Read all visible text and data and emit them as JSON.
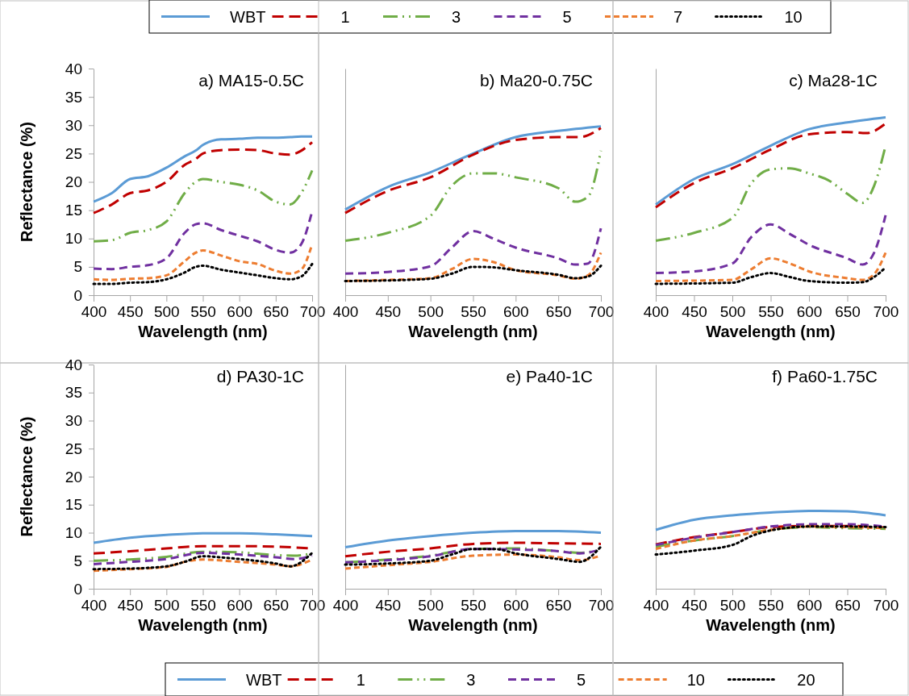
{
  "chart_data": [
    {
      "type": "line",
      "title": "a) MA15-0.5C",
      "xlabel": "Wavelength (nm)",
      "ylabel": "Reflectance (%)",
      "xlim": [
        400,
        700
      ],
      "xticks": [
        400,
        450,
        500,
        550,
        600,
        650,
        700
      ],
      "ylim": [
        0,
        40
      ],
      "yticks": [
        0,
        5,
        10,
        15,
        20,
        25,
        30,
        35,
        40
      ],
      "legend": "top",
      "grid": false,
      "marker": "none",
      "series": [
        {
          "name": "WBT",
          "color": "#5b9bd5",
          "line_style": "solid",
          "x": [
            400,
            425,
            450,
            475,
            500,
            525,
            540,
            550,
            575,
            600,
            625,
            650,
            670,
            685,
            700
          ],
          "values": [
            16.5,
            18,
            20.5,
            21,
            22.5,
            24.5,
            25.5,
            26.5,
            27.5,
            27.6,
            27.8,
            27.8,
            27.9,
            28,
            28
          ]
        },
        {
          "name": "1",
          "color": "#c00000",
          "line_style": "dashed",
          "x": [
            400,
            425,
            450,
            475,
            500,
            525,
            540,
            550,
            575,
            600,
            625,
            650,
            670,
            685,
            700
          ],
          "values": [
            14.5,
            16,
            18,
            18.5,
            20,
            23,
            24,
            25,
            25.6,
            25.7,
            25.6,
            25,
            24.8,
            25.5,
            27
          ]
        },
        {
          "name": "3",
          "color": "#70ad47",
          "line_style": "dashed",
          "x": [
            400,
            425,
            450,
            475,
            500,
            525,
            540,
            550,
            575,
            600,
            625,
            650,
            670,
            685,
            700
          ],
          "values": [
            9.5,
            9.7,
            11,
            11.5,
            13,
            18,
            20,
            20.5,
            20,
            19.5,
            18.5,
            16.5,
            16,
            18,
            22
          ]
        },
        {
          "name": "5",
          "color": "#7030a0",
          "line_style": "dashed",
          "x": [
            400,
            425,
            450,
            475,
            500,
            525,
            540,
            550,
            575,
            600,
            625,
            650,
            670,
            685,
            700
          ],
          "values": [
            4.7,
            4.6,
            5,
            5.3,
            6.5,
            11,
            12.5,
            12.7,
            11.5,
            10.5,
            9.5,
            8,
            7.5,
            9,
            14.8
          ]
        },
        {
          "name": "7",
          "color": "#ed7d31",
          "line_style": "dashed",
          "x": [
            400,
            425,
            450,
            475,
            500,
            525,
            540,
            550,
            575,
            600,
            625,
            650,
            670,
            685,
            700
          ],
          "values": [
            2.8,
            2.7,
            2.9,
            3,
            3.5,
            6,
            7.5,
            7.9,
            7,
            6,
            5.5,
            4.3,
            3.8,
            4.5,
            9
          ]
        },
        {
          "name": "10",
          "color": "#000000",
          "line_style": "dotted",
          "x": [
            400,
            425,
            450,
            475,
            500,
            525,
            540,
            550,
            575,
            600,
            625,
            650,
            670,
            685,
            700
          ],
          "values": [
            2,
            2,
            2.2,
            2.3,
            2.8,
            4,
            5,
            5.2,
            4.5,
            4,
            3.5,
            3,
            2.8,
            3.3,
            5.5
          ]
        }
      ]
    },
    {
      "type": "line",
      "title": "b) Ma20-0.75C",
      "xlabel": "Wavelength (nm)",
      "xlim": [
        400,
        700
      ],
      "xticks": [
        400,
        450,
        500,
        550,
        600,
        650,
        700
      ],
      "ylim": [
        0,
        40
      ],
      "yticks": [
        0,
        5,
        10,
        15,
        20,
        25,
        30,
        35,
        40
      ],
      "tick_labels": "x",
      "grid": false,
      "marker": "none",
      "series": [
        {
          "color": "#5b9bd5",
          "line_style": "solid",
          "x": [
            400,
            450,
            500,
            550,
            600,
            650,
            700
          ],
          "values": [
            15.1,
            19.1,
            21.7,
            25,
            27.9,
            29,
            29.8
          ]
        },
        {
          "color": "#c00000",
          "line_style": "dashed",
          "x": [
            400,
            450,
            500,
            550,
            600,
            650,
            675,
            700
          ],
          "values": [
            14.5,
            18.4,
            20.8,
            24.8,
            27.4,
            27.9,
            27.9,
            29.5
          ]
        },
        {
          "color": "#70ad47",
          "line_style": "dashed",
          "x": [
            400,
            450,
            500,
            525,
            550,
            575,
            600,
            650,
            670,
            685,
            700
          ],
          "values": [
            9.6,
            11,
            14,
            19.3,
            21.5,
            21.5,
            20.8,
            18.9,
            16.5,
            17.4,
            25.5
          ]
        },
        {
          "color": "#7030a0",
          "line_style": "dashed",
          "x": [
            400,
            450,
            500,
            525,
            550,
            575,
            600,
            650,
            670,
            685,
            700
          ],
          "values": [
            3.8,
            4.1,
            5.1,
            8.4,
            11.3,
            9.9,
            8.4,
            6.5,
            5.4,
            5.6,
            11.8
          ]
        },
        {
          "color": "#ed7d31",
          "line_style": "dashed",
          "x": [
            400,
            450,
            500,
            525,
            550,
            575,
            600,
            650,
            670,
            685,
            700
          ],
          "values": [
            2.5,
            2.7,
            3,
            4.6,
            6.4,
            5.8,
            4.4,
            3.5,
            2.9,
            3.5,
            7.5
          ]
        },
        {
          "color": "#000000",
          "line_style": "dotted",
          "x": [
            400,
            450,
            500,
            525,
            550,
            575,
            600,
            650,
            670,
            685,
            700
          ],
          "values": [
            2.5,
            2.6,
            2.9,
            3.8,
            5,
            4.9,
            4.4,
            3.6,
            3,
            3.3,
            5.2
          ]
        }
      ]
    },
    {
      "type": "line",
      "title": "c) Ma28-1C",
      "xlabel": "Wavelength (nm)",
      "xlim": [
        400,
        700
      ],
      "xticks": [
        400,
        450,
        500,
        550,
        600,
        650,
        700
      ],
      "ylim": [
        0,
        40
      ],
      "yticks": [
        0,
        5,
        10,
        15,
        20,
        25,
        30,
        35,
        40
      ],
      "tick_labels": "x",
      "grid": false,
      "marker": "none",
      "series": [
        {
          "color": "#5b9bd5",
          "line_style": "solid",
          "x": [
            400,
            450,
            500,
            550,
            600,
            650,
            700
          ],
          "values": [
            16,
            20.5,
            23.1,
            26.4,
            29.3,
            30.5,
            31.4
          ]
        },
        {
          "color": "#c00000",
          "line_style": "dashed",
          "x": [
            400,
            450,
            500,
            550,
            600,
            650,
            675,
            700
          ],
          "values": [
            15.5,
            19.8,
            22.4,
            25.7,
            28.4,
            28.8,
            28.6,
            30.3
          ]
        },
        {
          "color": "#70ad47",
          "line_style": "dashed",
          "x": [
            400,
            450,
            500,
            525,
            550,
            575,
            600,
            625,
            650,
            670,
            685,
            700
          ],
          "values": [
            9.6,
            11,
            13.6,
            19.8,
            22.2,
            22.4,
            21.5,
            20.3,
            17.9,
            16.3,
            19.3,
            26.4
          ]
        },
        {
          "color": "#7030a0",
          "line_style": "dashed",
          "x": [
            400,
            450,
            500,
            525,
            550,
            575,
            600,
            650,
            670,
            685,
            700
          ],
          "values": [
            3.9,
            4.2,
            5.6,
            10.3,
            12.5,
            10.8,
            8.9,
            6.5,
            5.4,
            7.5,
            14.1
          ]
        },
        {
          "color": "#ed7d31",
          "line_style": "dashed",
          "x": [
            400,
            500,
            525,
            550,
            575,
            600,
            650,
            670,
            685,
            700
          ],
          "values": [
            2.5,
            2.7,
            4.6,
            6.5,
            5.6,
            4.2,
            3,
            2.7,
            3.7,
            7.5
          ]
        },
        {
          "color": "#000000",
          "line_style": "dotted",
          "x": [
            400,
            500,
            525,
            550,
            575,
            600,
            650,
            670,
            685,
            700
          ],
          "values": [
            2,
            2.2,
            3.2,
            3.9,
            3.2,
            2.5,
            2.2,
            2.3,
            3.2,
            4.9
          ]
        }
      ]
    },
    {
      "type": "line",
      "title": "d) PA30-1C",
      "xlabel": "Wavelength (nm)",
      "ylabel": "Reflectance (%)",
      "xlim": [
        400,
        700
      ],
      "xticks": [
        400,
        450,
        500,
        550,
        600,
        650,
        700
      ],
      "ylim": [
        0,
        40
      ],
      "yticks": [
        0,
        5,
        10,
        15,
        20,
        25,
        30,
        35,
        40
      ],
      "legend": "bottom",
      "grid": false,
      "marker": "none",
      "series": [
        {
          "name": "WBT",
          "color": "#5b9bd5",
          "line_style": "solid",
          "x": [
            400,
            450,
            500,
            550,
            600,
            650,
            700
          ],
          "values": [
            8.2,
            9.1,
            9.6,
            9.9,
            9.9,
            9.7,
            9.4
          ]
        },
        {
          "name": "1",
          "color": "#c00000",
          "line_style": "dashed",
          "x": [
            400,
            450,
            500,
            550,
            600,
            650,
            700
          ],
          "values": [
            6.3,
            6.7,
            7.2,
            7.6,
            7.6,
            7.5,
            7.2
          ]
        },
        {
          "name": "3",
          "color": "#70ad47",
          "line_style": "dashed",
          "x": [
            400,
            450,
            500,
            550,
            575,
            600,
            650,
            675,
            700
          ],
          "values": [
            5,
            5.2,
            5.7,
            6.6,
            6.6,
            6.5,
            6,
            5.9,
            6.3
          ]
        },
        {
          "name": "5",
          "color": "#7030a0",
          "line_style": "dashed",
          "x": [
            400,
            450,
            500,
            550,
            600,
            650,
            675,
            700
          ],
          "values": [
            4.4,
            4.8,
            5.3,
            6.4,
            6.1,
            5.6,
            5.3,
            5.9
          ]
        },
        {
          "name": "10",
          "color": "#ed7d31",
          "line_style": "dashed",
          "x": [
            400,
            450,
            500,
            525,
            550,
            600,
            650,
            670,
            700
          ],
          "values": [
            3.2,
            3.5,
            3.9,
            4.8,
            5.2,
            4.8,
            4.3,
            4,
            5.2
          ]
        },
        {
          "name": "20",
          "color": "#000000",
          "line_style": "dotted",
          "x": [
            400,
            450,
            500,
            525,
            550,
            575,
            600,
            650,
            670,
            700
          ],
          "values": [
            3.5,
            3.6,
            4,
            4.8,
            5.8,
            5.6,
            5.3,
            4.5,
            4,
            6.4
          ]
        }
      ]
    },
    {
      "type": "line",
      "title": "e) Pa40-1C",
      "xlabel": "Wavelength (nm)",
      "xlim": [
        400,
        700
      ],
      "xticks": [
        400,
        450,
        500,
        550,
        600,
        650,
        700
      ],
      "ylim": [
        0,
        40
      ],
      "yticks": [
        0,
        5,
        10,
        15,
        20,
        25,
        30,
        35,
        40
      ],
      "tick_labels": "x",
      "grid": false,
      "marker": "none",
      "series": [
        {
          "color": "#5b9bd5",
          "line_style": "solid",
          "x": [
            400,
            450,
            500,
            550,
            600,
            650,
            700
          ],
          "values": [
            7.4,
            8.6,
            9.4,
            10,
            10.3,
            10.3,
            10
          ]
        },
        {
          "color": "#c00000",
          "line_style": "dashed",
          "x": [
            400,
            450,
            500,
            550,
            600,
            650,
            700
          ],
          "values": [
            5.8,
            6.6,
            7.2,
            8,
            8.2,
            8.1,
            8
          ]
        },
        {
          "color": "#70ad47",
          "line_style": "dashed",
          "x": [
            400,
            450,
            500,
            550,
            600,
            650,
            675,
            700
          ],
          "values": [
            4.7,
            5.2,
            5.9,
            7.1,
            7.2,
            6.7,
            6.4,
            7
          ]
        },
        {
          "color": "#7030a0",
          "line_style": "dashed",
          "x": [
            400,
            450,
            500,
            550,
            600,
            650,
            675,
            700
          ],
          "values": [
            4.7,
            5.1,
            5.8,
            7.1,
            7,
            6.7,
            6.3,
            7
          ]
        },
        {
          "color": "#ed7d31",
          "line_style": "dashed",
          "x": [
            400,
            450,
            500,
            550,
            600,
            650,
            675,
            700
          ],
          "values": [
            3.6,
            4.2,
            4.8,
            5.9,
            6.1,
            5.6,
            5.1,
            5.9
          ]
        },
        {
          "color": "#000000",
          "line_style": "dotted",
          "x": [
            400,
            450,
            500,
            525,
            550,
            575,
            600,
            650,
            675,
            700
          ],
          "values": [
            4.3,
            4.5,
            5,
            6.1,
            7.1,
            7.1,
            6.3,
            5.3,
            4.8,
            7.5
          ]
        }
      ]
    },
    {
      "type": "line",
      "title": "f) Pa60-1.75C",
      "xlabel": "Wavelength (nm)",
      "xlim": [
        400,
        700
      ],
      "xticks": [
        400,
        450,
        500,
        550,
        600,
        650,
        700
      ],
      "ylim": [
        0,
        40
      ],
      "yticks": [
        0,
        5,
        10,
        15,
        20,
        25,
        30,
        35,
        40
      ],
      "tick_labels": "x",
      "grid": false,
      "marker": "none",
      "series": [
        {
          "color": "#5b9bd5",
          "line_style": "solid",
          "x": [
            400,
            450,
            500,
            550,
            600,
            650,
            700
          ],
          "values": [
            10.5,
            12.3,
            13.1,
            13.6,
            13.9,
            13.8,
            13.1
          ]
        },
        {
          "color": "#c00000",
          "line_style": "dashed",
          "x": [
            400,
            450,
            500,
            550,
            600,
            650,
            700
          ],
          "values": [
            7.9,
            9.2,
            10.1,
            11,
            11.2,
            11.2,
            10.9
          ]
        },
        {
          "color": "#70ad47",
          "line_style": "dashed",
          "x": [
            400,
            450,
            500,
            550,
            600,
            650,
            700
          ],
          "values": [
            7.5,
            8.6,
            9.4,
            10.5,
            11,
            10.8,
            10.7
          ]
        },
        {
          "color": "#7030a0",
          "line_style": "dashed",
          "x": [
            400,
            450,
            500,
            550,
            600,
            650,
            700
          ],
          "values": [
            7.8,
            9.1,
            10.1,
            11.1,
            11.5,
            11.5,
            11.1
          ]
        },
        {
          "color": "#ed7d31",
          "line_style": "dashed",
          "x": [
            400,
            450,
            500,
            550,
            600,
            650,
            700
          ],
          "values": [
            7.1,
            8.6,
            9.4,
            10.5,
            11.1,
            11,
            10.8
          ]
        },
        {
          "color": "#000000",
          "line_style": "dotted",
          "x": [
            400,
            450,
            500,
            525,
            550,
            600,
            650,
            700
          ],
          "values": [
            6.1,
            6.8,
            7.8,
            9.4,
            10.4,
            11.1,
            11.1,
            11
          ]
        }
      ]
    }
  ]
}
